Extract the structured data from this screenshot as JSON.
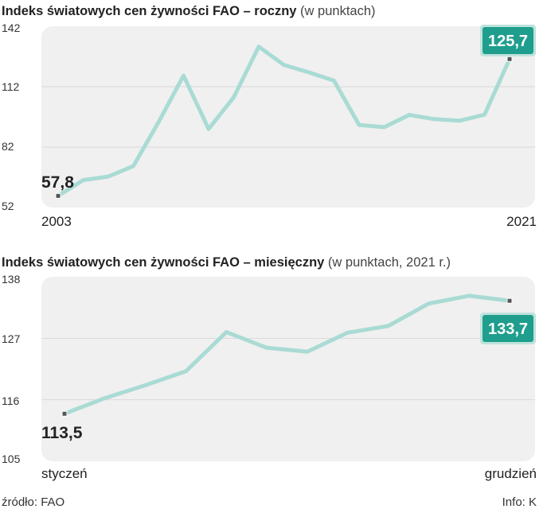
{
  "chart_data": [
    {
      "type": "line",
      "title": "Indeks światowych cen żywności FAO – roczny",
      "subtitle": "(w punktach)",
      "x_start_label": "2003",
      "x_end_label": "2021",
      "y_ticks": [
        "142",
        "112",
        "82",
        "52"
      ],
      "ylim": [
        52,
        142
      ],
      "start_value_label": "57,8",
      "end_value_label": "125,7",
      "grid": true,
      "colors": {
        "line": "#a9dbd4",
        "background": "#f0f0f0",
        "badge": "#1f9e8d",
        "badge_border": "#bfe2dc"
      },
      "x": [
        2003,
        2004,
        2005,
        2006,
        2007,
        2008,
        2009,
        2010,
        2011,
        2012,
        2013,
        2014,
        2015,
        2016,
        2017,
        2018,
        2019,
        2020,
        2021
      ],
      "values": [
        57.8,
        65.6,
        67.4,
        72.6,
        94.3,
        117.5,
        91.0,
        106.7,
        131.9,
        122.8,
        119.1,
        115.0,
        93.0,
        91.9,
        98.0,
        95.9,
        95.1,
        98.1,
        125.7
      ]
    },
    {
      "type": "line",
      "title": "Indeks światowych cen żywności FAO – miesięczny",
      "subtitle": "(w punktach, 2021 r.)",
      "x_start_label": "styczeń",
      "x_end_label": "grudzień",
      "y_ticks": [
        "138",
        "127",
        "116",
        "105"
      ],
      "ylim": [
        105,
        138
      ],
      "start_value_label": "113,5",
      "end_value_label": "133,7",
      "grid": true,
      "colors": {
        "line": "#a9dbd4",
        "background": "#f0f0f0",
        "badge": "#1f9e8d",
        "badge_border": "#bfe2dc"
      },
      "x": [
        1,
        2,
        3,
        4,
        5,
        6,
        7,
        8,
        9,
        10,
        11,
        12
      ],
      "values": [
        113.5,
        116.3,
        118.6,
        121.1,
        128.1,
        125.3,
        124.6,
        128.0,
        129.2,
        133.2,
        134.6,
        133.7
      ]
    }
  ],
  "footer": {
    "source": "źródło: FAO",
    "credit": "Info: K"
  }
}
